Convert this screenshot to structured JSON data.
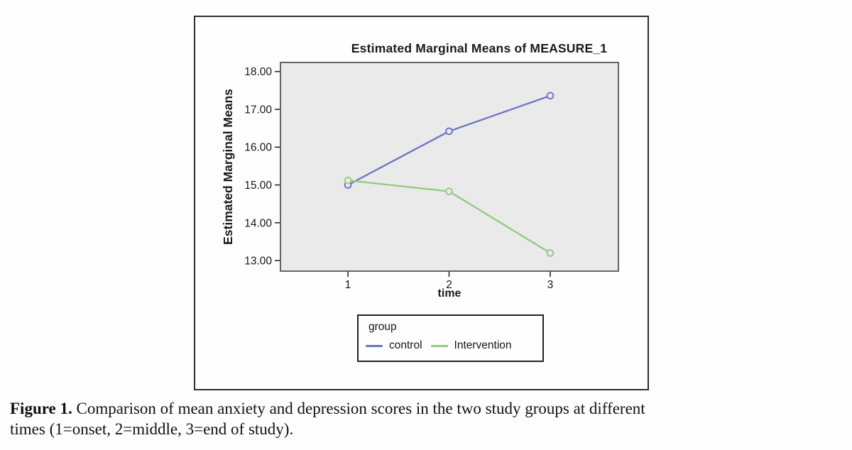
{
  "figure": {
    "caption_label": "Figure 1.",
    "caption_line1": "Comparison of mean anxiety and depression scores in the two study groups at different",
    "caption_line2": "times (1=onset, 2=middle, 3=end of study)."
  },
  "chart_data": {
    "type": "line",
    "title": "Estimated Marginal Means of MEASURE_1",
    "xlabel": "time",
    "ylabel": "Estimated Marginal Means",
    "x": [
      1,
      2,
      3
    ],
    "x_tick_labels": [
      "1",
      "2",
      "3"
    ],
    "xlim": [
      0.333,
      3.674
    ],
    "y_ticks": [
      18,
      17,
      16,
      15,
      14,
      13
    ],
    "y_tick_labels": [
      "18.00",
      "17.00",
      "16.00",
      "15.00",
      "14.00",
      "13.00"
    ],
    "ylim": [
      12.72,
      18.24
    ],
    "grid": false,
    "plot_bg_color": "#eaeaea",
    "plot_border_color": "#4d4d4d",
    "marker": "open-circle",
    "series": [
      {
        "name": "control",
        "color": "#6b74c1",
        "values": [
          15.0,
          16.42,
          17.36
        ]
      },
      {
        "name": "Intervention",
        "color": "#92ca81",
        "values": [
          15.12,
          14.83,
          13.2
        ]
      }
    ],
    "legend": {
      "title": "group",
      "position": "below-chart"
    }
  }
}
